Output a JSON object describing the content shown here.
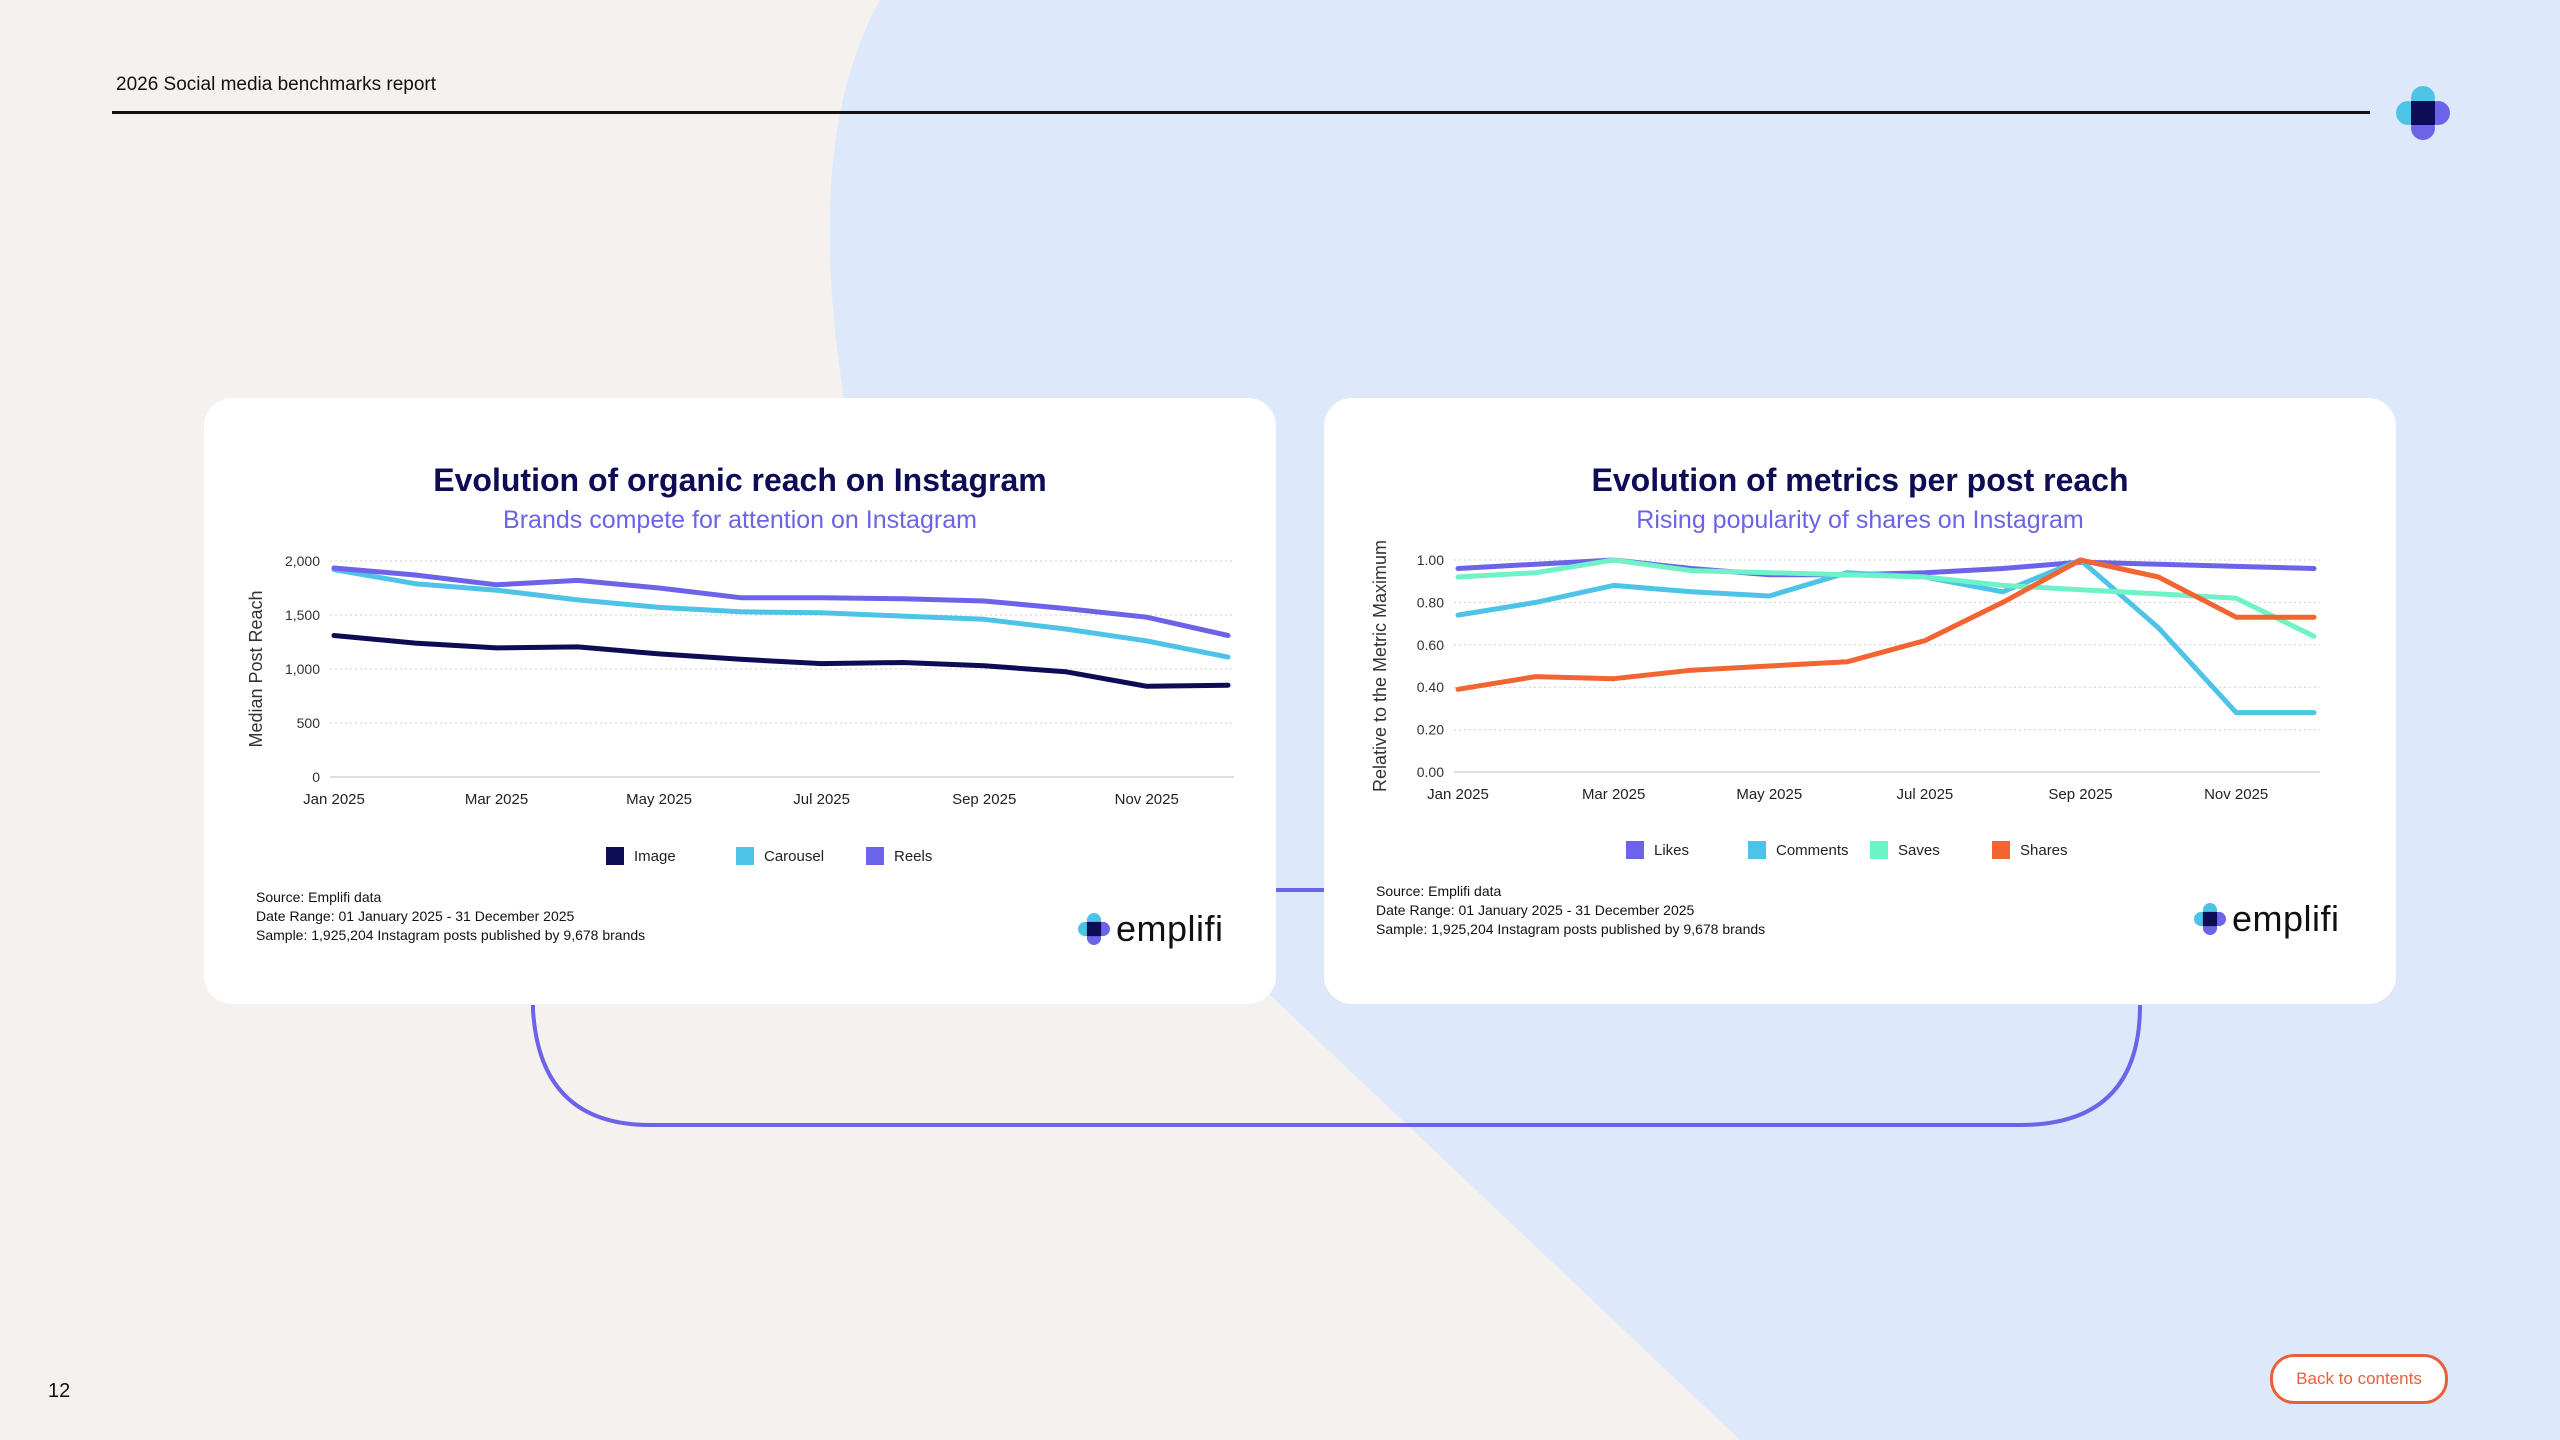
{
  "header": {
    "title": "2026 Social media benchmarks report"
  },
  "footer": {
    "page_number": "12",
    "back_label": "Back to contents"
  },
  "colors": {
    "accent": "#6c63e8",
    "navy": "#0d0c55",
    "orange": "#e8603c",
    "light_blue_bg": "#dde9fa"
  },
  "chart_data": [
    {
      "type": "line",
      "title": "Evolution of organic reach on Instagram",
      "subtitle": "Brands compete for attention on Instagram",
      "xlabel": "",
      "ylabel": "Median Post Reach",
      "ylim": [
        0,
        2000
      ],
      "yticks": [
        "2,000",
        "1,500",
        "1,000",
        "500",
        "0"
      ],
      "ytick_values": [
        2000,
        1500,
        1000,
        500,
        0
      ],
      "x": [
        "Jan 2025",
        "Feb 2025",
        "Mar 2025",
        "Apr 2025",
        "May 2025",
        "Jun 2025",
        "Jul 2025",
        "Aug 2025",
        "Sep 2025",
        "Oct 2025",
        "Nov 2025",
        "Dec 2025"
      ],
      "xtick_labels": [
        "Jan 2025",
        "Mar 2025",
        "May 2025",
        "Jul 2025",
        "Sep 2025",
        "Nov 2025"
      ],
      "xtick_index": [
        0,
        2,
        4,
        6,
        8,
        10
      ],
      "series": [
        {
          "name": "Image",
          "color": "#0d0c55",
          "values": [
            1310,
            1240,
            1195,
            1205,
            1140,
            1090,
            1050,
            1060,
            1030,
            975,
            840,
            850
          ]
        },
        {
          "name": "Carousel",
          "color": "#4ec3e8",
          "values": [
            1920,
            1790,
            1730,
            1640,
            1570,
            1530,
            1520,
            1490,
            1460,
            1370,
            1260,
            1110
          ]
        },
        {
          "name": "Reels",
          "color": "#6c63e8",
          "values": [
            1935,
            1870,
            1780,
            1820,
            1750,
            1660,
            1660,
            1650,
            1630,
            1560,
            1480,
            1310
          ]
        }
      ],
      "source_lines": [
        "Source:  Emplifi data",
        "Date Range:  01 January 2025 - 31 December 2025",
        "Sample:  1,925,204 Instagram posts published by 9,678 brands"
      ],
      "brand": "emplifi"
    },
    {
      "type": "line",
      "title": "Evolution of metrics per post reach",
      "subtitle": "Rising popularity of shares on Instagram",
      "xlabel": "",
      "ylabel": "Relative to the Metric Maximum",
      "ylim": [
        0,
        1
      ],
      "yticks": [
        "1.00",
        "0.80",
        "0.60",
        "0.40",
        "0.20",
        "0.00"
      ],
      "ytick_values": [
        1.0,
        0.8,
        0.6,
        0.4,
        0.2,
        0.0
      ],
      "x": [
        "Jan 2025",
        "Feb 2025",
        "Mar 2025",
        "Apr 2025",
        "May 2025",
        "Jun 2025",
        "Jul 2025",
        "Aug 2025",
        "Sep 2025",
        "Oct 2025",
        "Nov 2025",
        "Dec 2025"
      ],
      "xtick_labels": [
        "Jan 2025",
        "Mar 2025",
        "May 2025",
        "Jul 2025",
        "Sep 2025",
        "Nov 2025"
      ],
      "xtick_index": [
        0,
        2,
        4,
        6,
        8,
        10
      ],
      "series": [
        {
          "name": "Likes",
          "color": "#6c63e8",
          "values": [
            0.96,
            0.98,
            1.0,
            0.96,
            0.93,
            0.93,
            0.94,
            0.96,
            0.99,
            0.98,
            0.97,
            0.96
          ]
        },
        {
          "name": "Comments",
          "color": "#4ec3e8",
          "values": [
            0.74,
            0.8,
            0.88,
            0.85,
            0.83,
            0.94,
            0.92,
            0.85,
            1.0,
            0.68,
            0.28,
            0.28
          ]
        },
        {
          "name": "Saves",
          "color": "#6ef2c8",
          "values": [
            0.92,
            0.94,
            1.0,
            0.95,
            0.94,
            0.93,
            0.92,
            0.88,
            0.86,
            0.84,
            0.82,
            0.64
          ]
        },
        {
          "name": "Shares",
          "color": "#f26432",
          "values": [
            0.39,
            0.45,
            0.44,
            0.48,
            0.5,
            0.52,
            0.62,
            0.8,
            1.0,
            0.92,
            0.73,
            0.73
          ]
        }
      ],
      "source_lines": [
        "Source:  Emplifi data",
        "Date Range:  01 January 2025 - 31 December 2025",
        "Sample:  1,925,204 Instagram posts published by 9,678 brands"
      ],
      "brand": "emplifi"
    }
  ]
}
